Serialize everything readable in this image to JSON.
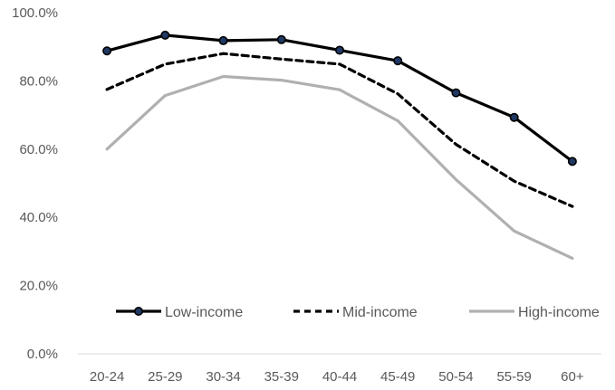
{
  "chart_data": {
    "type": "line",
    "title": "",
    "xlabel": "",
    "ylabel": "",
    "categories": [
      "20-24",
      "25-29",
      "30-34",
      "35-39",
      "40-44",
      "45-49",
      "50-54",
      "55-59",
      "60+"
    ],
    "ylim": [
      0,
      100
    ],
    "yticks": [
      "0.0%",
      "20.0%",
      "40.0%",
      "60.0%",
      "80.0%",
      "100.0%"
    ],
    "ytick_values": [
      0,
      20,
      40,
      60,
      80,
      100
    ],
    "grid": false,
    "legend_position": "bottom-inside",
    "series": [
      {
        "name": "Low-income",
        "values": [
          88.8,
          93.4,
          91.8,
          92.1,
          89.0,
          85.9,
          76.5,
          69.3,
          56.4
        ],
        "color": "#000000",
        "style": "solid-markers"
      },
      {
        "name": "Mid-income",
        "values": [
          77.5,
          84.9,
          88.0,
          86.4,
          84.9,
          76.2,
          61.4,
          50.6,
          43.2
        ],
        "color": "#000000",
        "style": "dashed"
      },
      {
        "name": "High-income",
        "values": [
          60.0,
          75.7,
          81.3,
          80.2,
          77.4,
          68.3,
          51.1,
          36.0,
          28.0
        ],
        "color": "#b0b0b0",
        "style": "solid"
      }
    ],
    "marker_fill": "#1f3864"
  }
}
